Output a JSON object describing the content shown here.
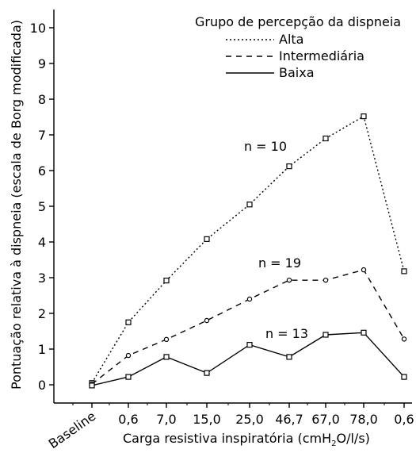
{
  "chart_data": {
    "type": "line",
    "xlabel": "Carga resistiva inspiratória (cmH2O/l/s)",
    "xlabel_parts": {
      "before": "Carga resistiva inspiratória (cmH",
      "sub": "2",
      "after": "O/l/s)"
    },
    "ylabel": "Pontuação relativa à dispneia (escala de Borg modificada)",
    "categories": [
      "Baseline",
      "0,6",
      "7,0",
      "15,0",
      "25,0",
      "46,7",
      "67,0",
      "78,0",
      "0,6"
    ],
    "ylim": [
      0,
      10
    ],
    "yticks": [
      "0",
      "1",
      "2",
      "3",
      "4",
      "5",
      "6",
      "7",
      "8",
      "9",
      "10"
    ],
    "grid": false,
    "legend": {
      "title": "Grupo de percepção da dispneia",
      "position": "top-right"
    },
    "series": [
      {
        "name": "Alta",
        "style": "dotted",
        "marker": "square",
        "annotation": "n = 10",
        "values": [
          0.05,
          1.75,
          2.92,
          4.08,
          5.05,
          6.12,
          6.9,
          7.52,
          3.18
        ]
      },
      {
        "name": "Intermediária",
        "style": "dashed",
        "marker": "circle",
        "annotation": "n = 19",
        "values": [
          0.02,
          0.82,
          1.27,
          1.8,
          2.4,
          2.93,
          2.93,
          3.22,
          1.28
        ]
      },
      {
        "name": "Baixa",
        "style": "solid",
        "marker": "square",
        "annotation": "n = 13",
        "values": [
          -0.02,
          0.22,
          0.78,
          0.33,
          1.12,
          0.78,
          1.4,
          1.46,
          0.22
        ]
      }
    ]
  }
}
